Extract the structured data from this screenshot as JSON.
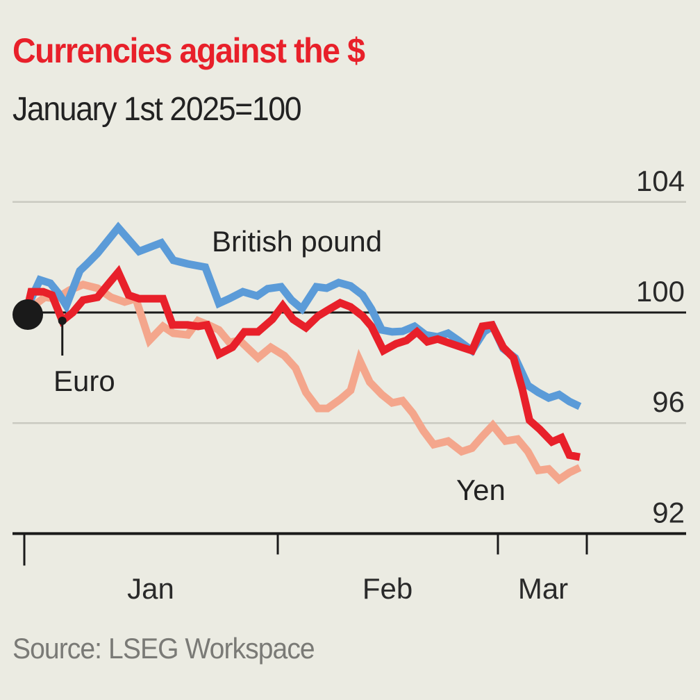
{
  "chart_data": {
    "type": "line",
    "title": "Currencies against the $",
    "subtitle": "January 1st 2025=100",
    "source": "Source: LSEG Workspace",
    "xlabel": "",
    "ylabel": "",
    "x_unit": "days since January 1st 2025",
    "ylim": [
      92,
      104
    ],
    "yticks": [
      104,
      100,
      96,
      92
    ],
    "ytick_labels": [
      "104",
      "100",
      "96",
      "92"
    ],
    "baseline": 100,
    "xlim": [
      0,
      70
    ],
    "xtick_boundaries": [
      0,
      31,
      59,
      70
    ],
    "xtick_labels": [
      {
        "label": "Jan",
        "center_day": 15.5
      },
      {
        "label": "Feb",
        "center_day": 45
      },
      {
        "label": "Mar",
        "center_day": 64.5
      }
    ],
    "grid": true,
    "colors": {
      "background": "#ebebe2",
      "title": "#e8202a",
      "grid": "#c9c9c0",
      "axis": "#1a1a1a"
    },
    "start_marker": {
      "day": 0,
      "value": 100
    },
    "series": [
      {
        "name": "British pound",
        "label": "British pound",
        "color": "#5b9bd8",
        "points": [
          [
            0,
            100
          ],
          [
            0.6,
            100.5
          ],
          [
            1.7,
            101.18
          ],
          [
            3.0,
            101.06
          ],
          [
            4.0,
            100.7
          ],
          [
            5.0,
            100.25
          ],
          [
            6.7,
            101.51
          ],
          [
            7.6,
            101.76
          ],
          [
            8.9,
            102.14
          ],
          [
            11.5,
            103.07
          ],
          [
            14.1,
            102.21
          ],
          [
            16.9,
            102.52
          ],
          [
            18.4,
            101.89
          ],
          [
            20.2,
            101.76
          ],
          [
            22.4,
            101.64
          ],
          [
            24.1,
            100.33
          ],
          [
            25.4,
            100.5
          ],
          [
            27.1,
            100.75
          ],
          [
            28.9,
            100.6
          ],
          [
            30.2,
            100.86
          ],
          [
            31.9,
            100.93
          ],
          [
            33.2,
            100.45
          ],
          [
            34.5,
            100.13
          ],
          [
            36.3,
            100.93
          ],
          [
            37.6,
            100.88
          ],
          [
            39.1,
            101.08
          ],
          [
            40.6,
            100.96
          ],
          [
            42.1,
            100.63
          ],
          [
            43.2,
            100.13
          ],
          [
            44.5,
            99.37
          ],
          [
            45.8,
            99.3
          ],
          [
            47.1,
            99.32
          ],
          [
            48.6,
            99.5
          ],
          [
            50.0,
            99.19
          ],
          [
            51.5,
            99.12
          ],
          [
            52.8,
            99.25
          ],
          [
            54.1,
            98.99
          ],
          [
            55.8,
            98.62
          ],
          [
            57.3,
            99.3
          ],
          [
            58.4,
            99.5
          ],
          [
            59.7,
            98.69
          ],
          [
            61.2,
            98.36
          ],
          [
            62.8,
            97.36
          ],
          [
            64.1,
            97.11
          ],
          [
            65.4,
            96.91
          ],
          [
            66.7,
            97.03
          ],
          [
            68.0,
            96.78
          ],
          [
            69.3,
            96.6
          ]
        ]
      },
      {
        "name": "Euro",
        "label": "Euro",
        "color": "#e8202a",
        "annotation_point": [
          4.5,
          99.7
        ],
        "points": [
          [
            0,
            100
          ],
          [
            0.6,
            100.75
          ],
          [
            2.1,
            100.75
          ],
          [
            3.2,
            100.63
          ],
          [
            4.5,
            99.7
          ],
          [
            5.8,
            100.0
          ],
          [
            7.1,
            100.45
          ],
          [
            8.9,
            100.55
          ],
          [
            10.2,
            101.01
          ],
          [
            11.5,
            101.46
          ],
          [
            12.8,
            100.63
          ],
          [
            14.1,
            100.5
          ],
          [
            17.1,
            100.5
          ],
          [
            18.3,
            99.55
          ],
          [
            20.2,
            99.55
          ],
          [
            21.5,
            99.5
          ],
          [
            22.6,
            99.55
          ],
          [
            24.1,
            98.49
          ],
          [
            25.8,
            98.74
          ],
          [
            27.3,
            99.3
          ],
          [
            29.0,
            99.3
          ],
          [
            30.8,
            99.75
          ],
          [
            32.1,
            100.25
          ],
          [
            33.4,
            99.75
          ],
          [
            35.0,
            99.45
          ],
          [
            36.5,
            99.87
          ],
          [
            38.0,
            100.13
          ],
          [
            39.3,
            100.35
          ],
          [
            40.6,
            100.2
          ],
          [
            42.1,
            99.87
          ],
          [
            43.2,
            99.5
          ],
          [
            44.7,
            98.62
          ],
          [
            46.3,
            98.87
          ],
          [
            47.6,
            98.99
          ],
          [
            48.9,
            99.3
          ],
          [
            50.2,
            98.94
          ],
          [
            51.5,
            99.04
          ],
          [
            53.0,
            98.89
          ],
          [
            54.5,
            98.74
          ],
          [
            55.8,
            98.62
          ],
          [
            57.1,
            99.5
          ],
          [
            58.3,
            99.55
          ],
          [
            59.7,
            98.74
          ],
          [
            61.0,
            98.36
          ],
          [
            62.1,
            97.23
          ],
          [
            63.0,
            96.1
          ],
          [
            64.3,
            95.77
          ],
          [
            65.8,
            95.32
          ],
          [
            67.0,
            95.47
          ],
          [
            68.0,
            94.84
          ],
          [
            69.3,
            94.77
          ]
        ]
      },
      {
        "name": "Yen",
        "label": "Yen",
        "color": "#f4a68c",
        "points": [
          [
            0,
            100
          ],
          [
            0.9,
            100.25
          ],
          [
            2.3,
            100.55
          ],
          [
            3.7,
            100.5
          ],
          [
            5.4,
            100.81
          ],
          [
            7.1,
            101.01
          ],
          [
            8.9,
            100.88
          ],
          [
            10.6,
            100.55
          ],
          [
            12.3,
            100.38
          ],
          [
            13.7,
            100.5
          ],
          [
            15.4,
            98.99
          ],
          [
            17.1,
            99.5
          ],
          [
            18.4,
            99.25
          ],
          [
            20.2,
            99.19
          ],
          [
            21.5,
            99.7
          ],
          [
            22.8,
            99.55
          ],
          [
            24.1,
            99.37
          ],
          [
            25.4,
            98.92
          ],
          [
            26.7,
            98.99
          ],
          [
            29.0,
            98.36
          ],
          [
            30.6,
            98.74
          ],
          [
            32.3,
            98.44
          ],
          [
            33.7,
            97.99
          ],
          [
            35.0,
            97.11
          ],
          [
            36.5,
            96.53
          ],
          [
            37.7,
            96.53
          ],
          [
            39.3,
            96.86
          ],
          [
            40.6,
            97.18
          ],
          [
            41.7,
            98.29
          ],
          [
            43.0,
            97.48
          ],
          [
            44.5,
            97.03
          ],
          [
            45.8,
            96.73
          ],
          [
            47.1,
            96.81
          ],
          [
            48.4,
            96.35
          ],
          [
            49.7,
            95.72
          ],
          [
            51.0,
            95.22
          ],
          [
            52.8,
            95.35
          ],
          [
            54.5,
            94.97
          ],
          [
            55.8,
            95.09
          ],
          [
            57.1,
            95.52
          ],
          [
            58.4,
            95.92
          ],
          [
            60.0,
            95.35
          ],
          [
            61.5,
            95.42
          ],
          [
            62.8,
            94.97
          ],
          [
            64.1,
            94.29
          ],
          [
            65.4,
            94.34
          ],
          [
            66.7,
            93.96
          ],
          [
            68.0,
            94.21
          ],
          [
            69.3,
            94.39
          ]
        ]
      }
    ]
  }
}
